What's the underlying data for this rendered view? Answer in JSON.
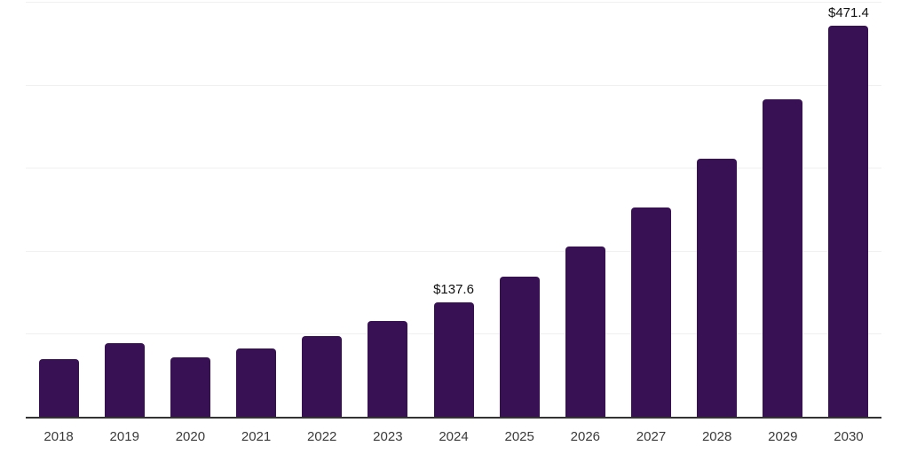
{
  "chart_data": {
    "type": "bar",
    "title": "",
    "xlabel": "",
    "ylabel": "",
    "categories": [
      "2018",
      "2019",
      "2020",
      "2021",
      "2022",
      "2023",
      "2024",
      "2025",
      "2026",
      "2027",
      "2028",
      "2029",
      "2030"
    ],
    "values": [
      69.4,
      89.0,
      71.5,
      82.6,
      97.6,
      115.4,
      137.6,
      168.5,
      205.5,
      252.0,
      310.5,
      383.0,
      471.4
    ],
    "data_labels": [
      "",
      "",
      "",
      "",
      "",
      "",
      "$137.6",
      "",
      "",
      "",
      "",
      "",
      "$471.4"
    ],
    "ylim": [
      0,
      500
    ],
    "gridline_values": [
      100,
      200,
      300,
      400,
      500
    ],
    "grid": "horizontal-only",
    "legend": "none",
    "colors": {
      "bar": "#371153",
      "gridline": "#f0f0f0",
      "axis_line": "#333333",
      "tick_label": "#3a3a3a",
      "data_label": "#111111",
      "background": "#ffffff"
    }
  }
}
